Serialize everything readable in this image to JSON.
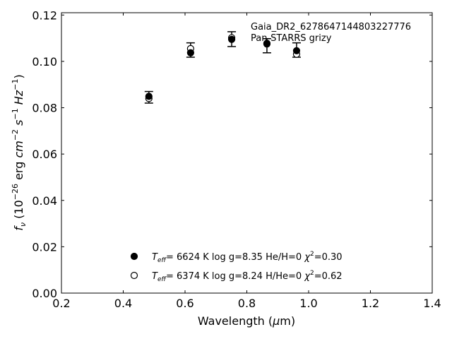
{
  "chart_data": {
    "type": "scatter",
    "title": "",
    "xlabel": "Wavelength (μm)",
    "ylabel": "f_ν (10^-26 erg cm^-2 s^-1 Hz^-1)",
    "xlim": [
      0.2,
      1.4
    ],
    "ylim": [
      0.0,
      0.121
    ],
    "xticks": [
      "0.2",
      "0.4",
      "0.6",
      "0.8",
      "1.0",
      "1.2",
      "1.4"
    ],
    "yticks": [
      "0.00",
      "0.02",
      "0.04",
      "0.06",
      "0.08",
      "0.10",
      "0.12"
    ],
    "grid": false,
    "annotation": [
      "Gaia_DR2_6278647144803227776",
      "Pan-STARRS grizy"
    ],
    "observed": {
      "x": [
        0.483,
        0.618,
        0.751,
        0.865,
        0.961
      ],
      "err_low": [
        0.082,
        0.1018,
        0.1064,
        0.1037,
        0.1018
      ],
      "err_high": [
        0.087,
        0.108,
        0.1128,
        0.1098,
        0.108
      ]
    },
    "series": [
      {
        "marker": "filled-circle",
        "x": [
          0.483,
          0.618,
          0.751,
          0.865,
          0.961
        ],
        "y": [
          0.0849,
          0.1037,
          0.1095,
          0.1078,
          0.1046
        ]
      },
      {
        "marker": "open-circle",
        "x": [
          0.483,
          0.618,
          0.751,
          0.865,
          0.961
        ],
        "y": [
          0.084,
          0.1055,
          0.1102,
          0.1075,
          0.1031
        ]
      }
    ],
    "legend": {
      "placement": "lower-center",
      "entries": [
        {
          "teff_label": "T",
          "teff_sub": "eff",
          "text": "=  6624 K  log g=8.35  He/H=0  ",
          "chi_label": "χ",
          "chi_sup": "2",
          "chi_value": "=0.30"
        },
        {
          "teff_label": "T",
          "teff_sub": "eff",
          "text": "=  6374 K  log g=8.24  H/He=0  ",
          "chi_label": "χ",
          "chi_sup": "2",
          "chi_value": "=0.62"
        }
      ]
    }
  }
}
